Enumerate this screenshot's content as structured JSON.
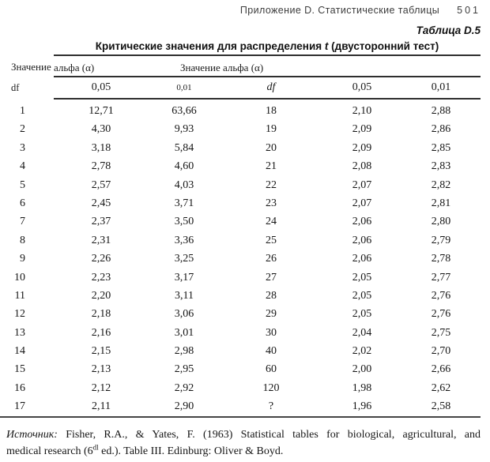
{
  "page_header": {
    "section": "Приложение D. Статистические таблицы",
    "page_number": "501"
  },
  "table_label": "Таблица D.5",
  "title": {
    "pre": "Критические значения для распределения ",
    "emphasis": "t",
    "post": " (двусторонний тест)"
  },
  "header": {
    "left_group_line1": "Значение",
    "left_group_line2": "альфа (α)",
    "right_group_label": "Значение альфа (α)",
    "columns": [
      "df",
      "0,05",
      "0,01",
      "df",
      "0,05",
      "0,01"
    ]
  },
  "rows": [
    [
      "1",
      "12,71",
      "63,66",
      "18",
      "2,10",
      "2,88"
    ],
    [
      "2",
      "4,30",
      "9,93",
      "19",
      "2,09",
      "2,86"
    ],
    [
      "3",
      "3,18",
      "5,84",
      "20",
      "2,09",
      "2,85"
    ],
    [
      "4",
      "2,78",
      "4,60",
      "21",
      "2,08",
      "2,83"
    ],
    [
      "5",
      "2,57",
      "4,03",
      "22",
      "2,07",
      "2,82"
    ],
    [
      "6",
      "2,45",
      "3,71",
      "23",
      "2,07",
      "2,81"
    ],
    [
      "7",
      "2,37",
      "3,50",
      "24",
      "2,06",
      "2,80"
    ],
    [
      "8",
      "2,31",
      "3,36",
      "25",
      "2,06",
      "2,79"
    ],
    [
      "9",
      "2,26",
      "3,25",
      "26",
      "2,06",
      "2,78"
    ],
    [
      "10",
      "2,23",
      "3,17",
      "27",
      "2,05",
      "2,77"
    ],
    [
      "11",
      "2,20",
      "3,11",
      "28",
      "2,05",
      "2,76"
    ],
    [
      "12",
      "2,18",
      "3,06",
      "29",
      "2,05",
      "2,76"
    ],
    [
      "13",
      "2,16",
      "3,01",
      "30",
      "2,04",
      "2,75"
    ],
    [
      "14",
      "2,15",
      "2,98",
      "40",
      "2,02",
      "2,70"
    ],
    [
      "15",
      "2,13",
      "2,95",
      "60",
      "2,00",
      "2,66"
    ],
    [
      "16",
      "2,12",
      "2,92",
      "120",
      "1,98",
      "2,62"
    ],
    [
      "17",
      "2,11",
      "2,90",
      "?",
      "1,96",
      "2,58"
    ]
  ],
  "footer": {
    "source_label": "Источник:",
    "line1_rest": " Fisher, R.A., & Yates, F. (1963) Statistical tables for biological, agricultural, and",
    "line2_pre": "medical research (6",
    "line2_sup": "dl",
    "line2_post": " ed.). Table III. Edinburg: Oliver & Boyd."
  },
  "colors": {
    "text": "#1b1b1b",
    "rule": "#2e2e2e"
  }
}
